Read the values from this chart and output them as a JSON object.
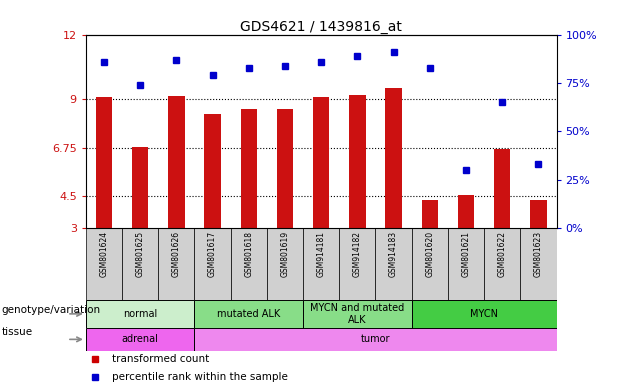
{
  "title": "GDS4621 / 1439816_at",
  "samples": [
    "GSM801624",
    "GSM801625",
    "GSM801626",
    "GSM801617",
    "GSM801618",
    "GSM801619",
    "GSM914181",
    "GSM914182",
    "GSM914183",
    "GSM801620",
    "GSM801621",
    "GSM801622",
    "GSM801623"
  ],
  "bar_values": [
    9.1,
    6.8,
    9.15,
    8.3,
    8.55,
    8.55,
    9.1,
    9.2,
    9.5,
    4.3,
    4.55,
    6.7,
    4.3
  ],
  "dot_values": [
    86,
    74,
    87,
    79,
    83,
    84,
    86,
    89,
    91,
    83,
    30,
    65,
    33
  ],
  "ylim_left": [
    3,
    12
  ],
  "ylim_right": [
    0,
    100
  ],
  "yticks_left": [
    3,
    4.5,
    6.75,
    9,
    12
  ],
  "ytick_labels_left": [
    "3",
    "4.5",
    "6.75",
    "9",
    "12"
  ],
  "yticks_right": [
    0,
    25,
    50,
    75,
    100
  ],
  "ytick_labels_right": [
    "0%",
    "25%",
    "50%",
    "75%",
    "100%"
  ],
  "bar_color": "#cc1111",
  "dot_color": "#0000cc",
  "hlines": [
    4.5,
    6.75,
    9
  ],
  "genotype_groups": [
    {
      "label": "normal",
      "start": 0,
      "end": 3,
      "color": "#cceecc"
    },
    {
      "label": "mutated ALK",
      "start": 3,
      "end": 6,
      "color": "#88dd88"
    },
    {
      "label": "MYCN and mutated\nALK",
      "start": 6,
      "end": 9,
      "color": "#88dd88"
    },
    {
      "label": "MYCN",
      "start": 9,
      "end": 13,
      "color": "#44cc44"
    }
  ],
  "tissue_groups": [
    {
      "label": "adrenal",
      "start": 0,
      "end": 3,
      "color": "#ee66ee"
    },
    {
      "label": "tumor",
      "start": 3,
      "end": 13,
      "color": "#ee88ee"
    }
  ],
  "legend_bar_label": "transformed count",
  "legend_dot_label": "percentile rank within the sample",
  "bar_color_legend": "#cc0000",
  "dot_color_legend": "#0000cc",
  "row_label_genotype": "genotype/variation",
  "row_label_tissue": "tissue"
}
